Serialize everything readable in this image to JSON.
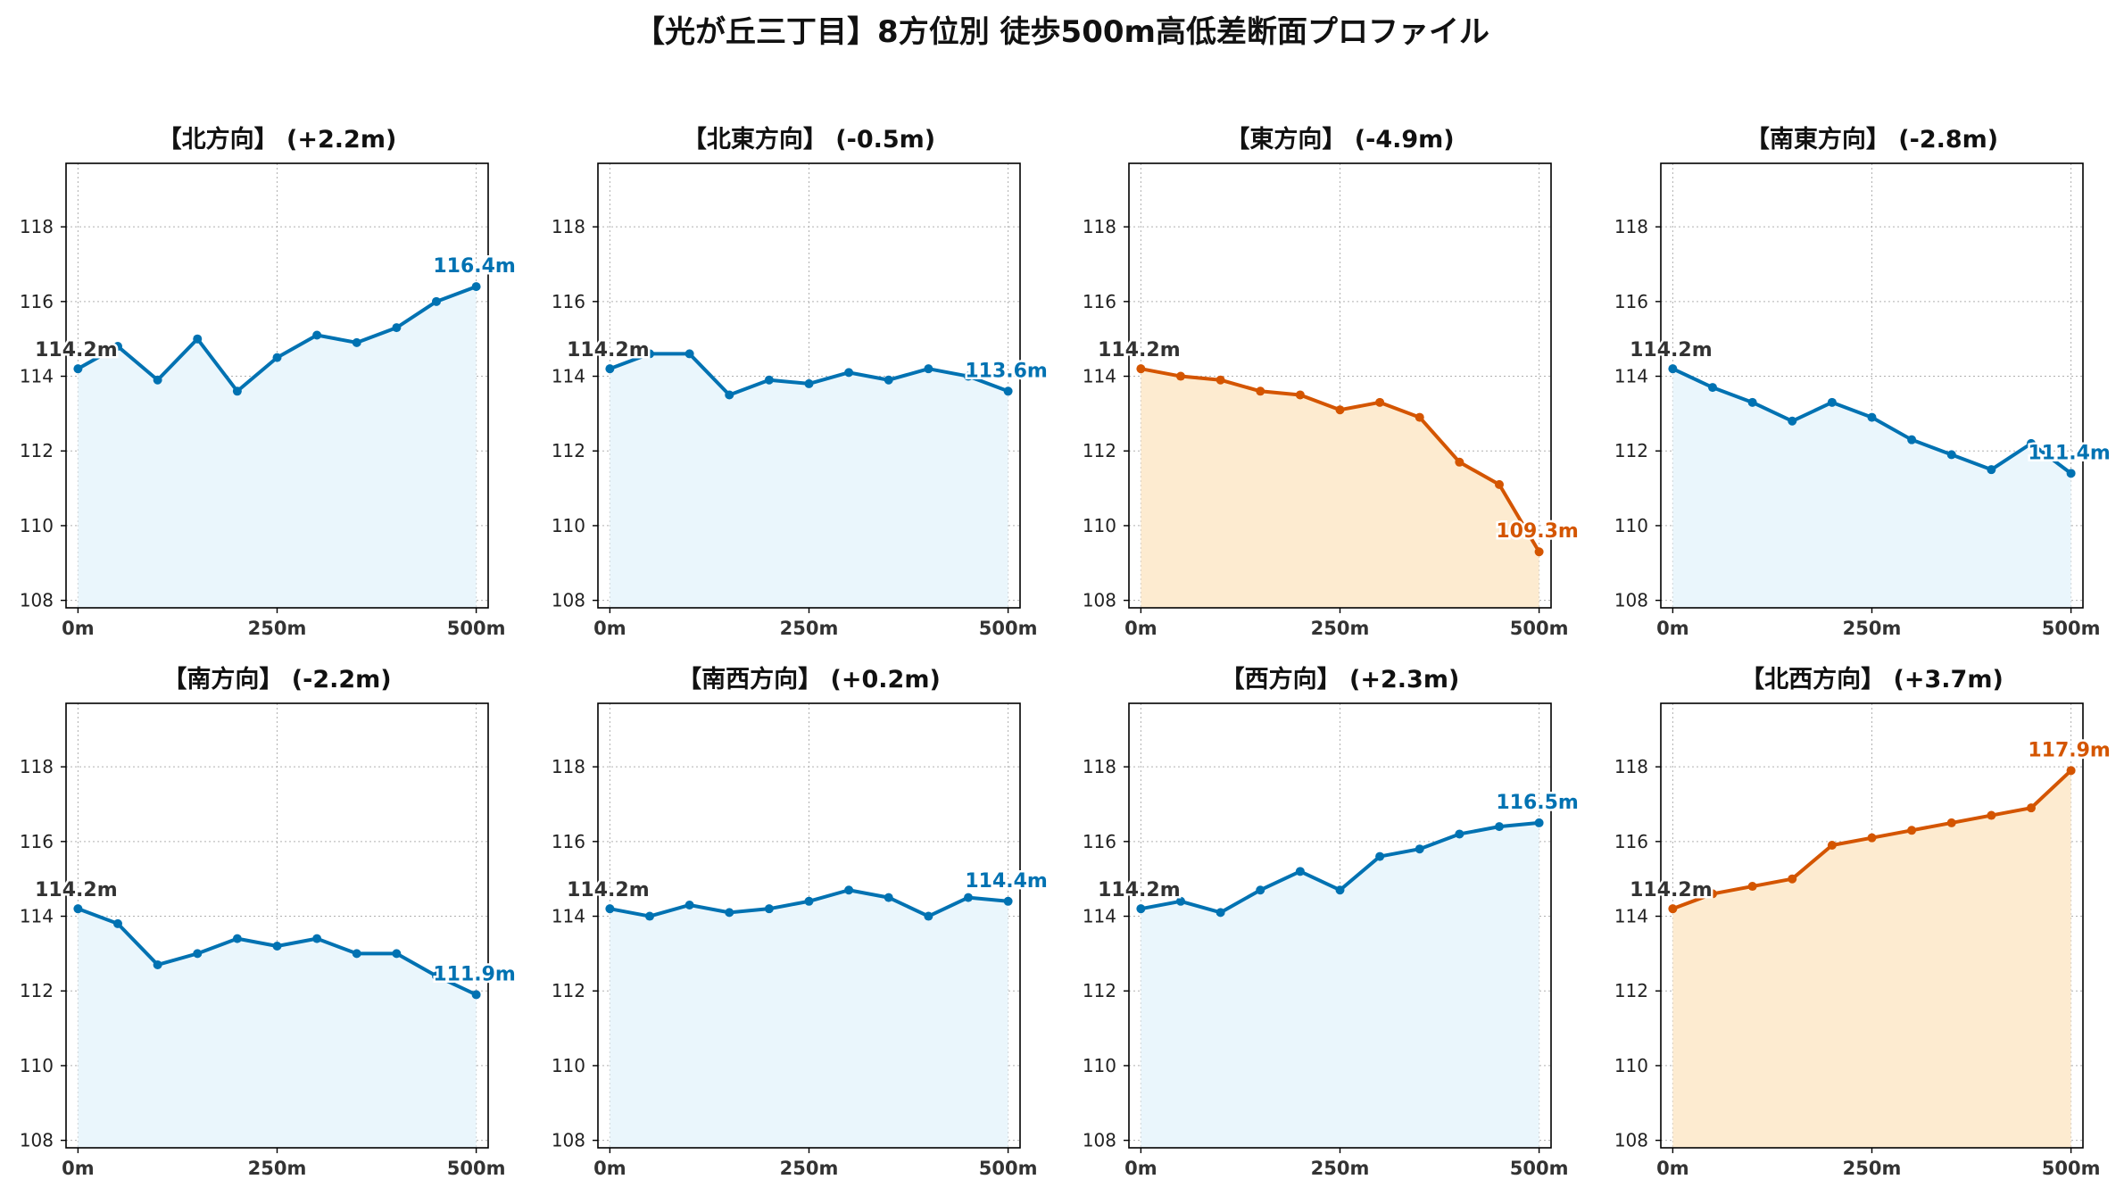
{
  "title": "【光が丘三丁目】8方位別 徒歩500m高低差断面プロファイル",
  "colors": {
    "rise_line": "#0072b2",
    "rise_fill": "#eaf6fc",
    "fall_line": "#d45500",
    "fall_fill": "#fdebd0",
    "start_label": "#333333",
    "grid": "#b0b0b0",
    "axis": "#000000"
  },
  "chart_data": [
    {
      "type": "area",
      "title": "【北方向】 (+2.2m)",
      "color": "blue",
      "x": [
        0,
        50,
        100,
        150,
        200,
        250,
        300,
        350,
        400,
        450,
        500
      ],
      "y": [
        114.2,
        114.8,
        113.9,
        115.0,
        113.6,
        114.5,
        115.1,
        114.9,
        115.3,
        116.0,
        116.4
      ],
      "start_label": "114.2m",
      "end_label": "116.4m",
      "xticks": [
        "0m",
        "250m",
        "500m"
      ],
      "yticks": [
        108,
        110,
        112,
        114,
        116,
        118
      ],
      "xlim": [
        -15,
        515
      ],
      "ylim": [
        107.8,
        119.7
      ],
      "grid": true
    },
    {
      "type": "area",
      "title": "【北東方向】 (-0.5m)",
      "color": "blue",
      "x": [
        0,
        50,
        100,
        150,
        200,
        250,
        300,
        350,
        400,
        450,
        500
      ],
      "y": [
        114.2,
        114.6,
        114.6,
        113.5,
        113.9,
        113.8,
        114.1,
        113.9,
        114.2,
        114.0,
        113.6
      ],
      "start_label": "114.2m",
      "end_label": "113.6m",
      "xticks": [
        "0m",
        "250m",
        "500m"
      ],
      "yticks": [
        108,
        110,
        112,
        114,
        116,
        118
      ],
      "xlim": [
        -15,
        515
      ],
      "ylim": [
        107.8,
        119.7
      ],
      "grid": true
    },
    {
      "type": "area",
      "title": "【東方向】 (-4.9m)",
      "color": "orange",
      "x": [
        0,
        50,
        100,
        150,
        200,
        250,
        300,
        350,
        400,
        450,
        500
      ],
      "y": [
        114.2,
        114.0,
        113.9,
        113.6,
        113.5,
        113.1,
        113.3,
        112.9,
        111.7,
        111.1,
        109.3
      ],
      "start_label": "114.2m",
      "end_label": "109.3m",
      "xticks": [
        "0m",
        "250m",
        "500m"
      ],
      "yticks": [
        108,
        110,
        112,
        114,
        116,
        118
      ],
      "xlim": [
        -15,
        515
      ],
      "ylim": [
        107.8,
        119.7
      ],
      "grid": true
    },
    {
      "type": "area",
      "title": "【南東方向】 (-2.8m)",
      "color": "blue",
      "x": [
        0,
        50,
        100,
        150,
        200,
        250,
        300,
        350,
        400,
        450,
        500
      ],
      "y": [
        114.2,
        113.7,
        113.3,
        112.8,
        113.3,
        112.9,
        112.3,
        111.9,
        111.5,
        112.2,
        111.4
      ],
      "start_label": "114.2m",
      "end_label": "111.4m",
      "xticks": [
        "0m",
        "250m",
        "500m"
      ],
      "yticks": [
        108,
        110,
        112,
        114,
        116,
        118
      ],
      "xlim": [
        -15,
        515
      ],
      "ylim": [
        107.8,
        119.7
      ],
      "grid": true
    },
    {
      "type": "area",
      "title": "【南方向】 (-2.2m)",
      "color": "blue",
      "x": [
        0,
        50,
        100,
        150,
        200,
        250,
        300,
        350,
        400,
        450,
        500
      ],
      "y": [
        114.2,
        113.8,
        112.7,
        113.0,
        113.4,
        113.2,
        113.4,
        113.0,
        113.0,
        112.4,
        111.9
      ],
      "start_label": "114.2m",
      "end_label": "111.9m",
      "xticks": [
        "0m",
        "250m",
        "500m"
      ],
      "yticks": [
        108,
        110,
        112,
        114,
        116,
        118
      ],
      "xlim": [
        -15,
        515
      ],
      "ylim": [
        107.8,
        119.7
      ],
      "grid": true
    },
    {
      "type": "area",
      "title": "【南西方向】 (+0.2m)",
      "color": "blue",
      "x": [
        0,
        50,
        100,
        150,
        200,
        250,
        300,
        350,
        400,
        450,
        500
      ],
      "y": [
        114.2,
        114.0,
        114.3,
        114.1,
        114.2,
        114.4,
        114.7,
        114.5,
        114.0,
        114.5,
        114.4
      ],
      "start_label": "114.2m",
      "end_label": "114.4m",
      "xticks": [
        "0m",
        "250m",
        "500m"
      ],
      "yticks": [
        108,
        110,
        112,
        114,
        116,
        118
      ],
      "xlim": [
        -15,
        515
      ],
      "ylim": [
        107.8,
        119.7
      ],
      "grid": true
    },
    {
      "type": "area",
      "title": "【西方向】 (+2.3m)",
      "color": "blue",
      "x": [
        0,
        50,
        100,
        150,
        200,
        250,
        300,
        350,
        400,
        450,
        500
      ],
      "y": [
        114.2,
        114.4,
        114.1,
        114.7,
        115.2,
        114.7,
        115.6,
        115.8,
        116.2,
        116.4,
        116.5
      ],
      "start_label": "114.2m",
      "end_label": "116.5m",
      "xticks": [
        "0m",
        "250m",
        "500m"
      ],
      "yticks": [
        108,
        110,
        112,
        114,
        116,
        118
      ],
      "xlim": [
        -15,
        515
      ],
      "ylim": [
        107.8,
        119.7
      ],
      "grid": true
    },
    {
      "type": "area",
      "title": "【北西方向】 (+3.7m)",
      "color": "orange",
      "x": [
        0,
        50,
        100,
        150,
        200,
        250,
        300,
        350,
        400,
        450,
        500
      ],
      "y": [
        114.2,
        114.6,
        114.8,
        115.0,
        115.9,
        116.1,
        116.3,
        116.5,
        116.7,
        116.9,
        117.9
      ],
      "start_label": "114.2m",
      "end_label": "117.9m",
      "xticks": [
        "0m",
        "250m",
        "500m"
      ],
      "yticks": [
        108,
        110,
        112,
        114,
        116,
        118
      ],
      "xlim": [
        -15,
        515
      ],
      "ylim": [
        107.8,
        119.7
      ],
      "grid": true
    }
  ]
}
